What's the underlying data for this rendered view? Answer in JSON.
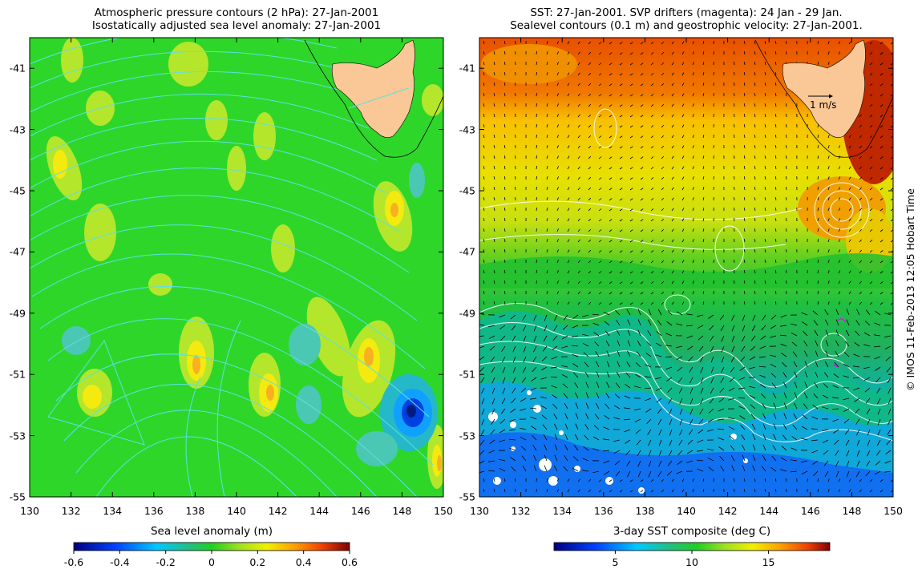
{
  "left_panel": {
    "title_line1": "Atmospheric pressure contours (2 hPa): 27-Jan-2001",
    "title_line2": "Isostatically adjusted sea level anomaly: 27-Jan-2001",
    "colorbar_label": "Sea level anomaly (m)",
    "colorbar_ticks": [
      "-0.6",
      "-0.4",
      "-0.2",
      "0",
      "0.2",
      "0.4",
      "0.6"
    ],
    "colorbar_range": [
      -0.6,
      0.6
    ]
  },
  "right_panel": {
    "title_line1": "SST: 27-Jan-2001. SVP drifters (magenta): 24 Jan - 29 Jan.",
    "title_line2": "Sealevel contours (0.1 m) and geostrophic velocity: 27-Jan-2001.",
    "colorbar_label": "3-day SST composite (deg C)",
    "colorbar_ticks": [
      "5",
      "10",
      "15"
    ],
    "colorbar_tick_values": [
      5,
      10,
      15
    ],
    "colorbar_range": [
      1,
      19
    ],
    "vector_scale_label": "1 m/s"
  },
  "axes": {
    "longitude_ticks": [
      "130",
      "132",
      "134",
      "136",
      "138",
      "140",
      "142",
      "144",
      "146",
      "148",
      "150"
    ],
    "latitude_ticks": [
      "-41",
      "-43",
      "-45",
      "-47",
      "-49",
      "-51",
      "-53",
      "-55"
    ],
    "lon_range": [
      130,
      150
    ],
    "lat_range": [
      -55,
      -40
    ]
  },
  "credit": "© IMOS 11-Feb-2013 12:05 Hobart Time",
  "colors": {
    "land": "#f9c896",
    "pressure_contour": "#5ee0e0",
    "sealevel_contour": "#ffffff",
    "drifter": "#ff00ff"
  }
}
